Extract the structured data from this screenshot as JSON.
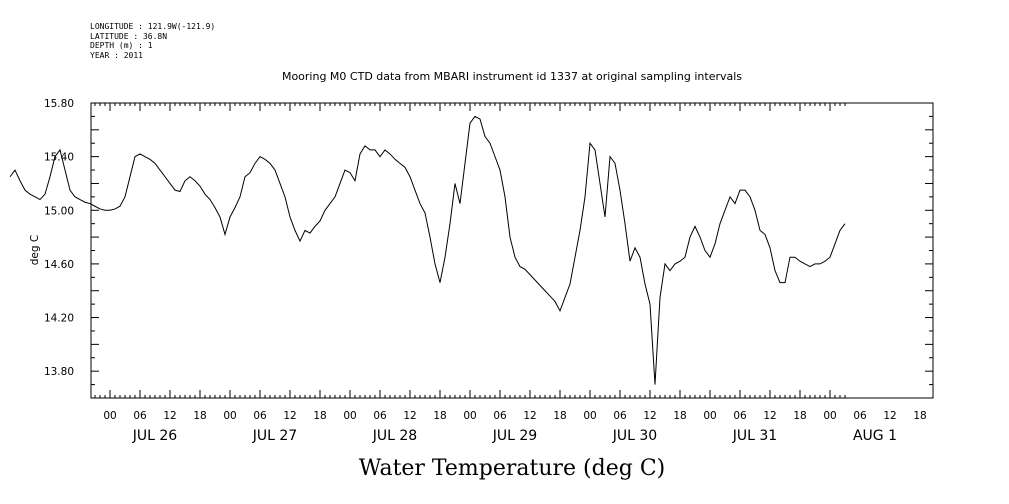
{
  "meta": {
    "longitude": "LONGITUDE : 121.9W(-121.9)",
    "latitude": "LATITUDE : 36.8N",
    "depth": "DEPTH (m) : 1",
    "year": "YEAR : 2011"
  },
  "chart_data": {
    "type": "line",
    "title": "Mooring M0 CTD data from MBARI instrument id 1337 at original sampling intervals",
    "xlabel": "Water Temperature (deg C)",
    "ylabel": "deg C",
    "ylim": [
      13.6,
      15.8
    ],
    "yticks": [
      "15.80",
      "15.40",
      "15.00",
      "14.60",
      "14.20",
      "13.80"
    ],
    "ytick_values": [
      15.8,
      15.4,
      15.0,
      14.6,
      14.2,
      13.8
    ],
    "xlim_hours": [
      -20,
      147
    ],
    "hour_labels": [
      "00",
      "06",
      "12",
      "18"
    ],
    "days": [
      "JUL 26",
      "JUL 27",
      "JUL 28",
      "JUL 29",
      "JUL 30",
      "JUL 31",
      "AUG 1"
    ],
    "grid": false,
    "series": [
      {
        "name": "",
        "x_hours": [
          -20,
          -19,
          -18,
          -17,
          -16,
          -15,
          -14,
          -13,
          -12,
          -11,
          -10,
          -9,
          -8,
          -7,
          -6,
          -5,
          -4,
          -3,
          -2,
          -1,
          0,
          1,
          2,
          3,
          4,
          5,
          6,
          7,
          8,
          9,
          10,
          11,
          12,
          13,
          14,
          15,
          16,
          17,
          18,
          19,
          20,
          21,
          22,
          23,
          24,
          25,
          26,
          27,
          28,
          29,
          30,
          31,
          32,
          33,
          34,
          35,
          36,
          37,
          38,
          39,
          40,
          41,
          42,
          43,
          44,
          45,
          46,
          47,
          48,
          49,
          50,
          51,
          52,
          53,
          54,
          55,
          56,
          57,
          58,
          59,
          60,
          61,
          62,
          63,
          64,
          65,
          66,
          67,
          68,
          69,
          70,
          71,
          72,
          73,
          74,
          75,
          76,
          77,
          78,
          79,
          80,
          81,
          82,
          83,
          84,
          85,
          86,
          87,
          88,
          89,
          90,
          91,
          92,
          93,
          94,
          95,
          96,
          97,
          98,
          99,
          100,
          101,
          102,
          103,
          104,
          105,
          106,
          107,
          108,
          109,
          110,
          111,
          112,
          113,
          114,
          115,
          116,
          117,
          118,
          119,
          120,
          121,
          122,
          123,
          124,
          125,
          126,
          127,
          128,
          129,
          130,
          131,
          132,
          133,
          134,
          135,
          136,
          137,
          138,
          139,
          140,
          141,
          142,
          143,
          144,
          145,
          146,
          147
        ],
        "y": [
          15.25,
          15.3,
          15.22,
          15.15,
          15.12,
          15.1,
          15.08,
          15.12,
          15.25,
          15.4,
          15.45,
          15.3,
          15.15,
          15.1,
          15.08,
          15.06,
          15.05,
          15.03,
          15.01,
          15.0,
          15.0,
          15.01,
          15.03,
          15.1,
          15.25,
          15.4,
          15.42,
          15.4,
          15.38,
          15.35,
          15.3,
          15.25,
          15.2,
          15.15,
          15.14,
          15.22,
          15.25,
          15.22,
          15.18,
          15.12,
          15.08,
          15.02,
          14.95,
          14.82,
          14.95,
          15.02,
          15.1,
          15.25,
          15.28,
          15.35,
          15.4,
          15.38,
          15.35,
          15.3,
          15.2,
          15.1,
          14.95,
          14.85,
          14.77,
          14.85,
          14.83,
          14.88,
          14.92,
          15.0,
          15.05,
          15.1,
          15.2,
          15.3,
          15.28,
          15.22,
          15.42,
          15.48,
          15.45,
          15.45,
          15.4,
          15.45,
          15.42,
          15.38,
          15.35,
          15.32,
          15.25,
          15.15,
          15.05,
          14.98,
          14.8,
          14.6,
          14.46,
          14.65,
          14.9,
          15.2,
          15.05,
          15.35,
          15.65,
          15.7,
          15.68,
          15.55,
          15.5,
          15.4,
          15.3,
          15.1,
          14.8,
          14.65,
          14.58,
          14.56,
          14.52,
          14.48,
          14.44,
          14.4,
          14.36,
          14.32,
          14.25,
          14.35,
          14.45,
          14.65,
          14.85,
          15.1,
          15.5,
          15.45,
          15.2,
          14.95,
          15.4,
          15.35,
          15.15,
          14.9,
          14.62,
          14.72,
          14.65,
          14.45,
          14.3,
          13.7,
          14.35,
          14.6,
          14.55,
          14.6,
          14.62,
          14.65,
          14.8,
          14.88,
          14.8,
          14.7,
          14.65,
          14.75,
          14.9,
          15.0,
          15.1,
          15.05,
          15.15,
          15.15,
          15.1,
          15.0,
          14.85,
          14.82,
          14.72,
          14.55,
          14.46,
          14.46,
          14.65,
          14.65,
          14.62,
          14.6,
          14.58,
          14.6,
          14.6,
          14.62,
          14.65,
          14.75,
          14.85,
          14.9
        ]
      }
    ]
  }
}
